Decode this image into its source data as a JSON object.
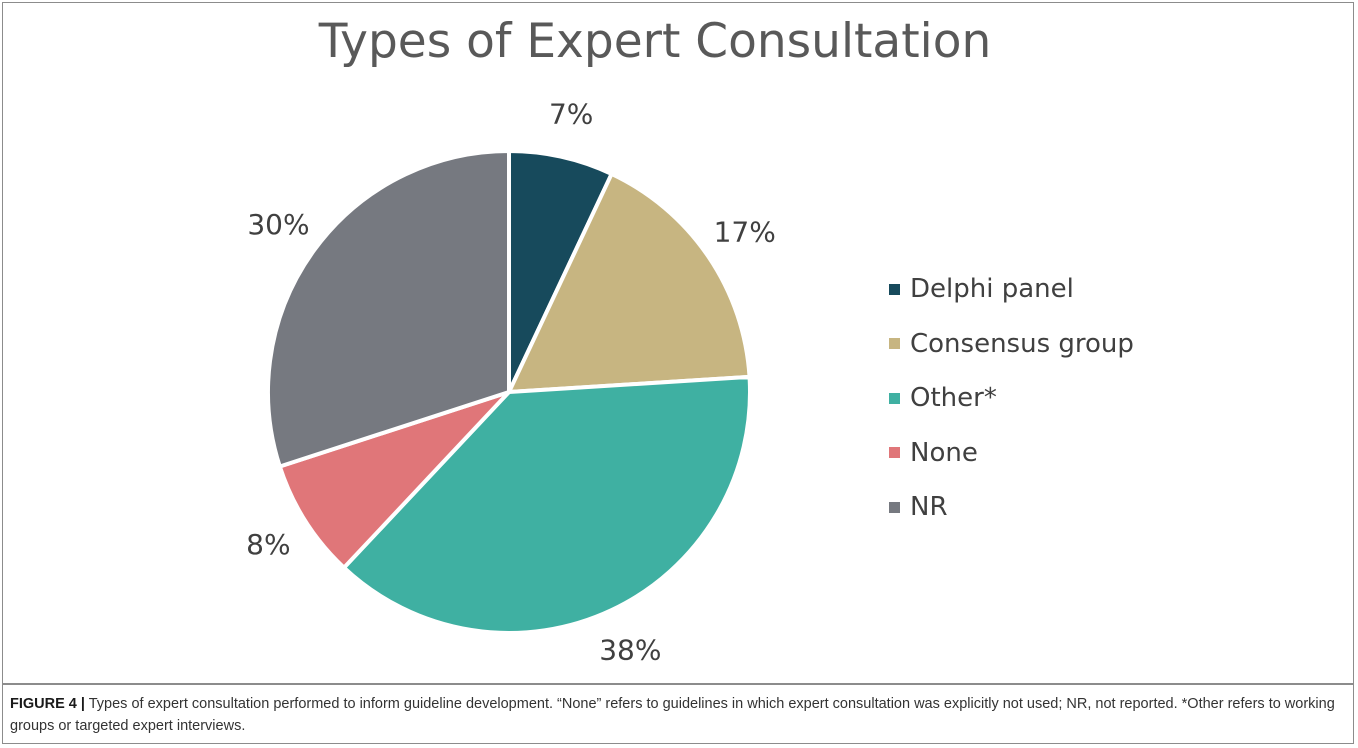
{
  "chart_data": {
    "type": "pie",
    "title": "Types of Expert Consultation",
    "slices": [
      {
        "label": "Delphi panel",
        "value": 7,
        "color": "#174a5c"
      },
      {
        "label": "Consensus group",
        "value": 17,
        "color": "#c7b581"
      },
      {
        "label": "Other*",
        "value": 38,
        "color": "#3fb0a2"
      },
      {
        "label": "None",
        "value": 8,
        "color": "#e07679"
      },
      {
        "label": "NR",
        "value": 30,
        "color": "#767980"
      }
    ],
    "data_labels": [
      "7%",
      "17%",
      "38%",
      "8%",
      "30%"
    ],
    "legend_position": "right"
  },
  "caption": {
    "label": "FIGURE 4 |",
    "text": "Types of expert consultation performed to inform guideline development. “None” refers to guidelines in which expert consultation was explicitly not used; NR, not reported. *Other refers to working groups or targeted expert interviews."
  }
}
